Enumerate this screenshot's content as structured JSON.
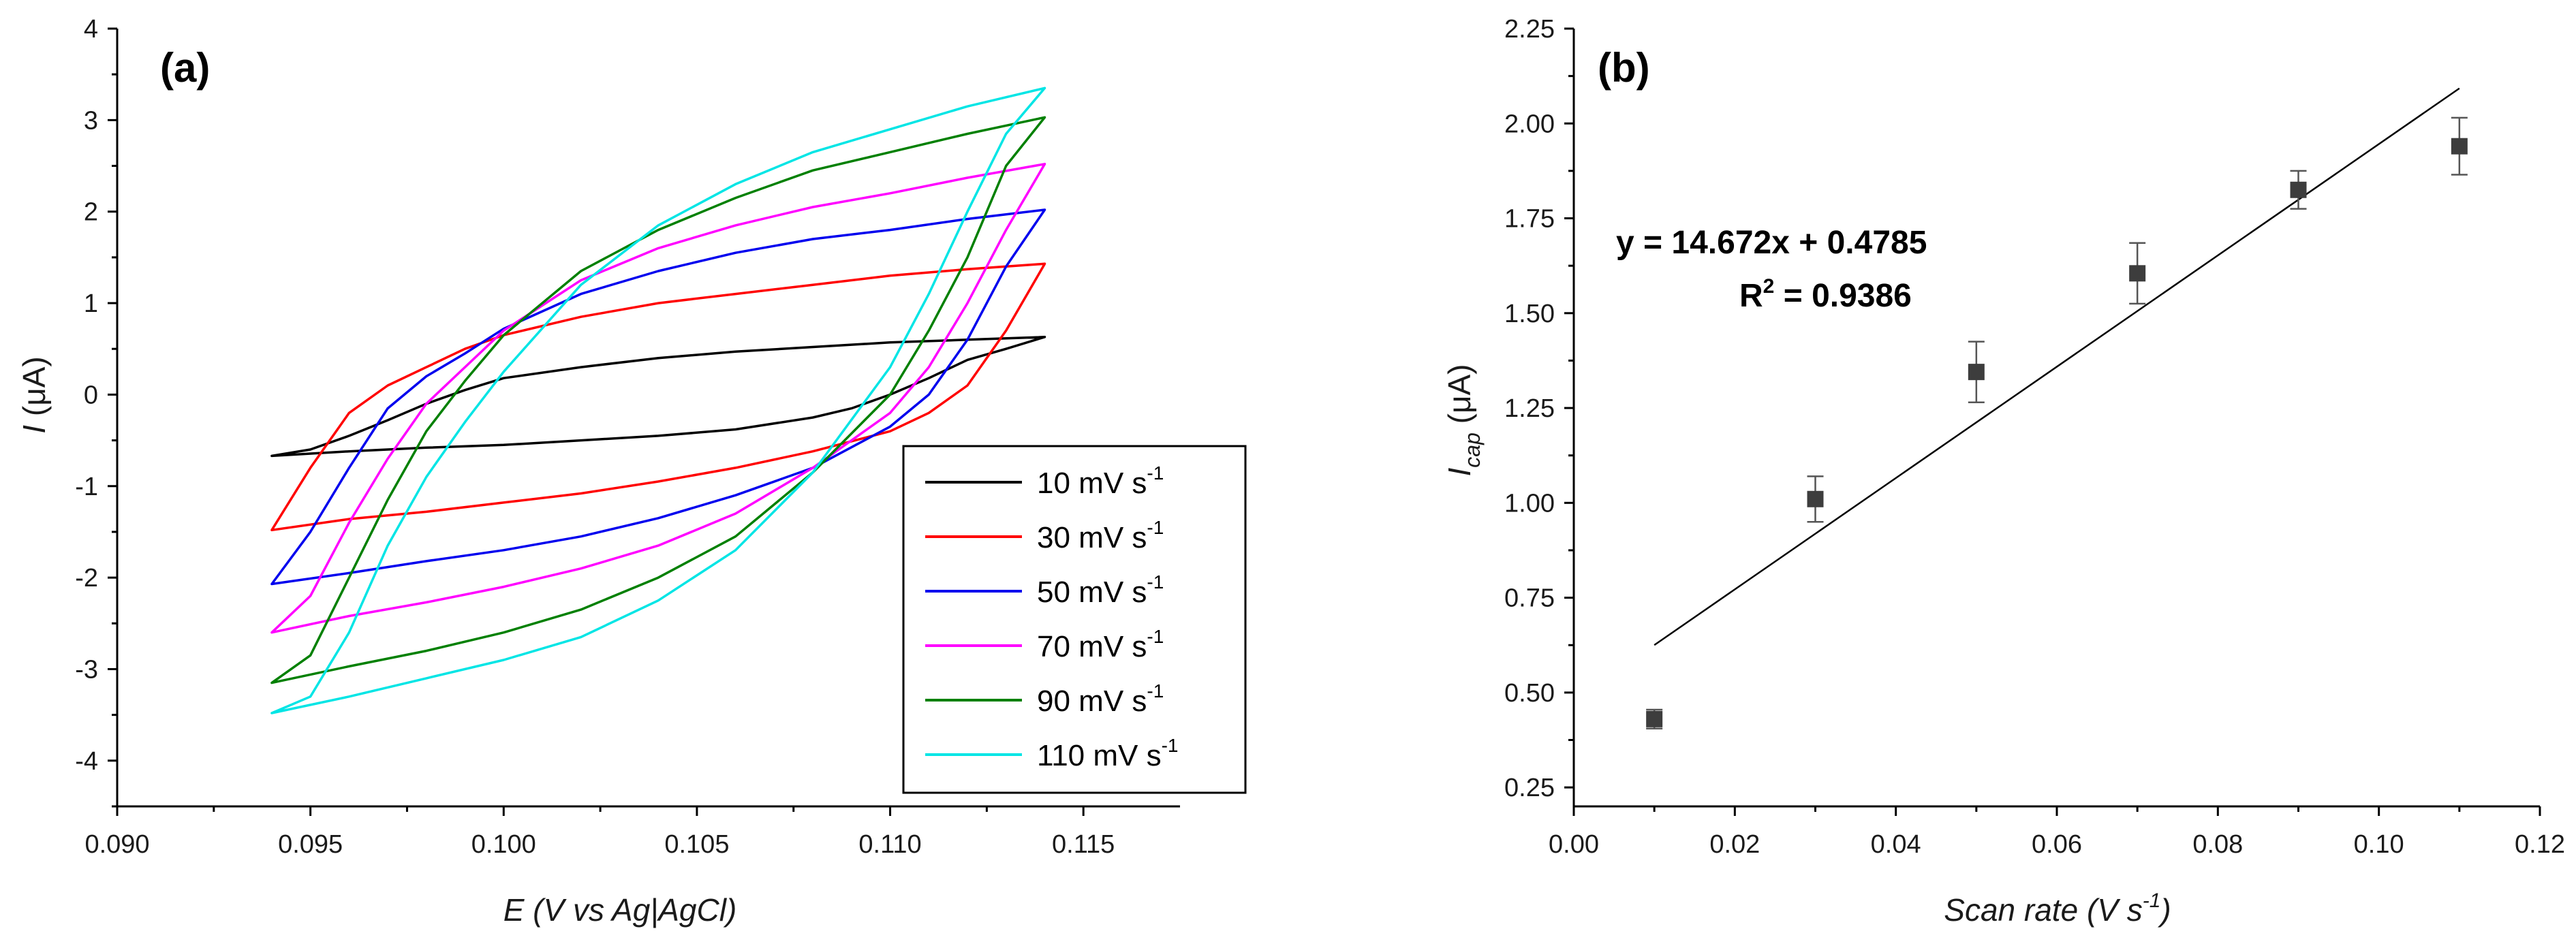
{
  "chart_data": [
    {
      "type": "line",
      "panel_label": "(a)",
      "xlabel": "E (V vs Ag|AgCl)",
      "ylabel": "I (μA)",
      "ylabel_symbol": "I",
      "ylabel_unit": " (μA)",
      "xlim": [
        0.09,
        0.1175
      ],
      "ylim": [
        -4.5,
        4
      ],
      "xticks": [
        0.09,
        0.095,
        0.1,
        0.105,
        0.11,
        0.115
      ],
      "xtick_labels": [
        "0.090",
        "0.095",
        "0.100",
        "0.105",
        "0.110",
        "0.115"
      ],
      "yticks": [
        -4,
        -3,
        -2,
        -1,
        0,
        1,
        2,
        3,
        4
      ],
      "ytick_labels": [
        "-4",
        "-3",
        "-2",
        "-1",
        "0",
        "1",
        "2",
        "3",
        "4"
      ],
      "legend_position": "bottom-right",
      "series": [
        {
          "name": "10 mV s-1",
          "label": "10 mV s",
          "label_sup": "-1",
          "color": "#000000",
          "anodic": [
            [
              0.094,
              -0.67
            ],
            [
              0.095,
              -0.6
            ],
            [
              0.096,
              -0.45
            ],
            [
              0.097,
              -0.28
            ],
            [
              0.098,
              -0.1
            ],
            [
              0.099,
              0.05
            ],
            [
              0.1,
              0.18
            ],
            [
              0.102,
              0.3
            ],
            [
              0.104,
              0.4
            ],
            [
              0.106,
              0.47
            ],
            [
              0.108,
              0.52
            ],
            [
              0.11,
              0.57
            ],
            [
              0.112,
              0.6
            ],
            [
              0.114,
              0.63
            ]
          ],
          "cathodic": [
            [
              0.114,
              0.58
            ],
            [
              0.113,
              0.5
            ],
            [
              0.112,
              0.38
            ],
            [
              0.111,
              0.18
            ],
            [
              0.11,
              0.0
            ],
            [
              0.109,
              -0.15
            ],
            [
              0.108,
              -0.25
            ],
            [
              0.106,
              -0.38
            ],
            [
              0.104,
              -0.45
            ],
            [
              0.102,
              -0.5
            ],
            [
              0.1,
              -0.55
            ],
            [
              0.098,
              -0.58
            ],
            [
              0.096,
              -0.62
            ],
            [
              0.094,
              -0.67
            ]
          ]
        },
        {
          "name": "30 mV s-1",
          "label": "30 mV s",
          "label_sup": "-1",
          "color": "#ff0000",
          "anodic": [
            [
              0.094,
              -1.48
            ],
            [
              0.095,
              -0.8
            ],
            [
              0.096,
              -0.2
            ],
            [
              0.097,
              0.1
            ],
            [
              0.098,
              0.3
            ],
            [
              0.099,
              0.5
            ],
            [
              0.1,
              0.65
            ],
            [
              0.102,
              0.85
            ],
            [
              0.104,
              1.0
            ],
            [
              0.106,
              1.1
            ],
            [
              0.108,
              1.2
            ],
            [
              0.11,
              1.3
            ],
            [
              0.112,
              1.37
            ],
            [
              0.114,
              1.43
            ]
          ],
          "cathodic": [
            [
              0.114,
              1.33
            ],
            [
              0.113,
              0.7
            ],
            [
              0.112,
              0.1
            ],
            [
              0.111,
              -0.2
            ],
            [
              0.11,
              -0.4
            ],
            [
              0.108,
              -0.62
            ],
            [
              0.106,
              -0.8
            ],
            [
              0.104,
              -0.95
            ],
            [
              0.102,
              -1.08
            ],
            [
              0.1,
              -1.18
            ],
            [
              0.098,
              -1.28
            ],
            [
              0.096,
              -1.36
            ],
            [
              0.094,
              -1.48
            ]
          ]
        },
        {
          "name": "50 mV s-1",
          "label": "50 mV s",
          "label_sup": "-1",
          "color": "#0000ee",
          "anodic": [
            [
              0.094,
              -2.07
            ],
            [
              0.095,
              -1.5
            ],
            [
              0.096,
              -0.8
            ],
            [
              0.097,
              -0.15
            ],
            [
              0.098,
              0.2
            ],
            [
              0.099,
              0.45
            ],
            [
              0.1,
              0.72
            ],
            [
              0.102,
              1.1
            ],
            [
              0.104,
              1.35
            ],
            [
              0.106,
              1.55
            ],
            [
              0.108,
              1.7
            ],
            [
              0.11,
              1.8
            ],
            [
              0.112,
              1.92
            ],
            [
              0.114,
              2.02
            ]
          ],
          "cathodic": [
            [
              0.114,
              1.88
            ],
            [
              0.113,
              1.4
            ],
            [
              0.112,
              0.6
            ],
            [
              0.111,
              0.0
            ],
            [
              0.11,
              -0.35
            ],
            [
              0.108,
              -0.8
            ],
            [
              0.106,
              -1.1
            ],
            [
              0.104,
              -1.35
            ],
            [
              0.102,
              -1.55
            ],
            [
              0.1,
              -1.7
            ],
            [
              0.098,
              -1.82
            ],
            [
              0.096,
              -1.95
            ],
            [
              0.094,
              -2.07
            ]
          ]
        },
        {
          "name": "70 mV s-1",
          "label": "70 mV s",
          "label_sup": "-1",
          "color": "#ff00ff",
          "anodic": [
            [
              0.094,
              -2.6
            ],
            [
              0.095,
              -2.2
            ],
            [
              0.096,
              -1.4
            ],
            [
              0.097,
              -0.7
            ],
            [
              0.098,
              -0.1
            ],
            [
              0.099,
              0.3
            ],
            [
              0.1,
              0.7
            ],
            [
              0.102,
              1.25
            ],
            [
              0.104,
              1.6
            ],
            [
              0.106,
              1.85
            ],
            [
              0.108,
              2.05
            ],
            [
              0.11,
              2.2
            ],
            [
              0.112,
              2.37
            ],
            [
              0.114,
              2.52
            ]
          ],
          "cathodic": [
            [
              0.114,
              2.3
            ],
            [
              0.113,
              1.8
            ],
            [
              0.112,
              1.0
            ],
            [
              0.111,
              0.3
            ],
            [
              0.11,
              -0.2
            ],
            [
              0.108,
              -0.8
            ],
            [
              0.106,
              -1.3
            ],
            [
              0.104,
              -1.65
            ],
            [
              0.102,
              -1.9
            ],
            [
              0.1,
              -2.1
            ],
            [
              0.098,
              -2.27
            ],
            [
              0.096,
              -2.42
            ],
            [
              0.094,
              -2.6
            ]
          ]
        },
        {
          "name": "90 mV s-1",
          "label": "90 mV s",
          "label_sup": "-1",
          "color": "#008000",
          "anodic": [
            [
              0.094,
              -3.15
            ],
            [
              0.095,
              -2.85
            ],
            [
              0.096,
              -2.0
            ],
            [
              0.097,
              -1.15
            ],
            [
              0.098,
              -0.4
            ],
            [
              0.099,
              0.15
            ],
            [
              0.1,
              0.65
            ],
            [
              0.102,
              1.35
            ],
            [
              0.104,
              1.8
            ],
            [
              0.106,
              2.15
            ],
            [
              0.108,
              2.45
            ],
            [
              0.11,
              2.65
            ],
            [
              0.112,
              2.85
            ],
            [
              0.114,
              3.03
            ]
          ],
          "cathodic": [
            [
              0.114,
              2.78
            ],
            [
              0.113,
              2.5
            ],
            [
              0.112,
              1.5
            ],
            [
              0.111,
              0.7
            ],
            [
              0.11,
              0.0
            ],
            [
              0.108,
              -0.85
            ],
            [
              0.106,
              -1.55
            ],
            [
              0.104,
              -2.0
            ],
            [
              0.102,
              -2.35
            ],
            [
              0.1,
              -2.6
            ],
            [
              0.098,
              -2.8
            ],
            [
              0.096,
              -2.97
            ],
            [
              0.094,
              -3.15
            ]
          ]
        },
        {
          "name": "110 mV s-1",
          "label": "110 mV s",
          "label_sup": "-1",
          "color": "#00e5e5",
          "anodic": [
            [
              0.094,
              -3.48
            ],
            [
              0.095,
              -3.3
            ],
            [
              0.096,
              -2.6
            ],
            [
              0.097,
              -1.65
            ],
            [
              0.098,
              -0.9
            ],
            [
              0.099,
              -0.3
            ],
            [
              0.1,
              0.25
            ],
            [
              0.102,
              1.2
            ],
            [
              0.104,
              1.85
            ],
            [
              0.106,
              2.3
            ],
            [
              0.108,
              2.65
            ],
            [
              0.11,
              2.9
            ],
            [
              0.112,
              3.15
            ],
            [
              0.114,
              3.35
            ]
          ],
          "cathodic": [
            [
              0.114,
              3.03
            ],
            [
              0.113,
              2.85
            ],
            [
              0.112,
              2.0
            ],
            [
              0.111,
              1.1
            ],
            [
              0.11,
              0.3
            ],
            [
              0.108,
              -0.85
            ],
            [
              0.106,
              -1.7
            ],
            [
              0.104,
              -2.25
            ],
            [
              0.102,
              -2.65
            ],
            [
              0.1,
              -2.9
            ],
            [
              0.098,
              -3.1
            ],
            [
              0.096,
              -3.3
            ],
            [
              0.094,
              -3.48
            ]
          ]
        }
      ]
    },
    {
      "type": "scatter",
      "panel_label": "(b)",
      "xlabel": "Scan rate (V s-1)",
      "xlabel_main": "Scan rate (V s",
      "xlabel_sup": "-1",
      "xlabel_end": ")",
      "ylabel": "Icap (μA)",
      "ylabel_symbol": "I",
      "ylabel_sub": "cap",
      "ylabel_unit": " (μA)",
      "xlim": [
        0,
        0.12
      ],
      "ylim": [
        0.2,
        2.25
      ],
      "xticks": [
        0,
        0.02,
        0.04,
        0.06,
        0.08,
        0.1,
        0.12
      ],
      "xtick_labels": [
        "0.00",
        "0.02",
        "0.04",
        "0.06",
        "0.08",
        "0.10",
        "0.12"
      ],
      "yticks": [
        0.25,
        0.5,
        0.75,
        1.0,
        1.25,
        1.5,
        1.75,
        2.0,
        2.25
      ],
      "ytick_labels": [
        "0.25",
        "0.50",
        "0.75",
        "1.00",
        "1.25",
        "1.50",
        "1.75",
        "2.00",
        "2.25"
      ],
      "points": [
        {
          "x": 0.01,
          "y": 0.43,
          "err": 0.025
        },
        {
          "x": 0.03,
          "y": 1.01,
          "err": 0.06
        },
        {
          "x": 0.05,
          "y": 1.345,
          "err": 0.08
        },
        {
          "x": 0.07,
          "y": 1.605,
          "err": 0.08
        },
        {
          "x": 0.09,
          "y": 1.825,
          "err": 0.05
        },
        {
          "x": 0.11,
          "y": 1.94,
          "err": 0.075
        }
      ],
      "fit": {
        "slope": 14.672,
        "intercept": 0.4785,
        "x_range": [
          0.01,
          0.11
        ]
      },
      "equation": "y = 14.672x + 0.4785",
      "r2_label": "R",
      "r2_sup": "2",
      "r2_value": " = 0.9386"
    }
  ]
}
